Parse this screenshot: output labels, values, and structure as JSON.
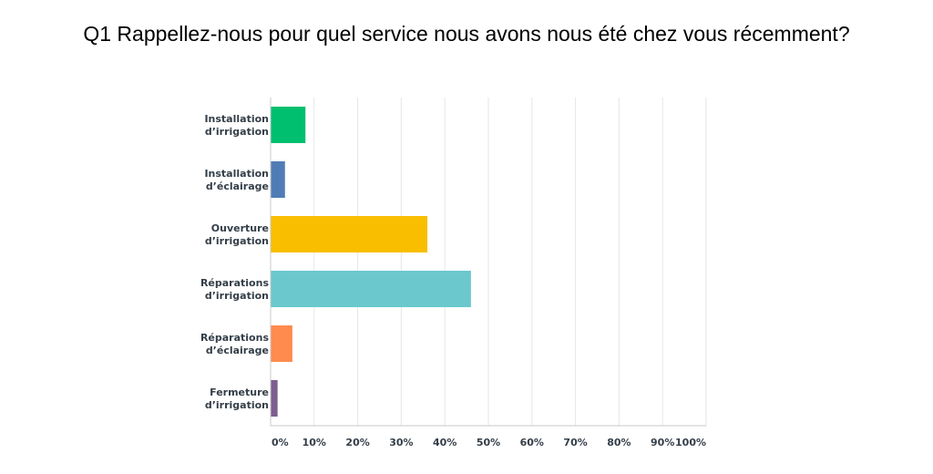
{
  "chart_data": {
    "type": "bar",
    "orientation": "horizontal",
    "title": "Q1 Rappellez-nous pour quel service nous avons nous été chez vous récemment?",
    "categories": [
      [
        "Installation",
        "d’irrigation"
      ],
      [
        "Installation",
        "d’éclairage"
      ],
      [
        "Ouverture",
        "d’irrigation"
      ],
      [
        "Réparations",
        "d’irrigation"
      ],
      [
        "Réparations",
        "d’éclairage"
      ],
      [
        "Fermeture",
        "d’irrigation"
      ]
    ],
    "values": [
      8,
      3.3,
      36,
      46,
      5,
      1.6
    ],
    "colors": [
      "#00bf6f",
      "#507cb6",
      "#f9be00",
      "#6bc8cd",
      "#ff8b4f",
      "#7d5e90"
    ],
    "xlim": [
      0,
      100
    ],
    "xticks": [
      0,
      10,
      20,
      30,
      40,
      50,
      60,
      70,
      80,
      90,
      100
    ],
    "xtick_labels": [
      "0%",
      "10%",
      "20%",
      "30%",
      "40%",
      "50%",
      "60%",
      "70%",
      "80%",
      "90%",
      "100%"
    ],
    "grid": true
  }
}
